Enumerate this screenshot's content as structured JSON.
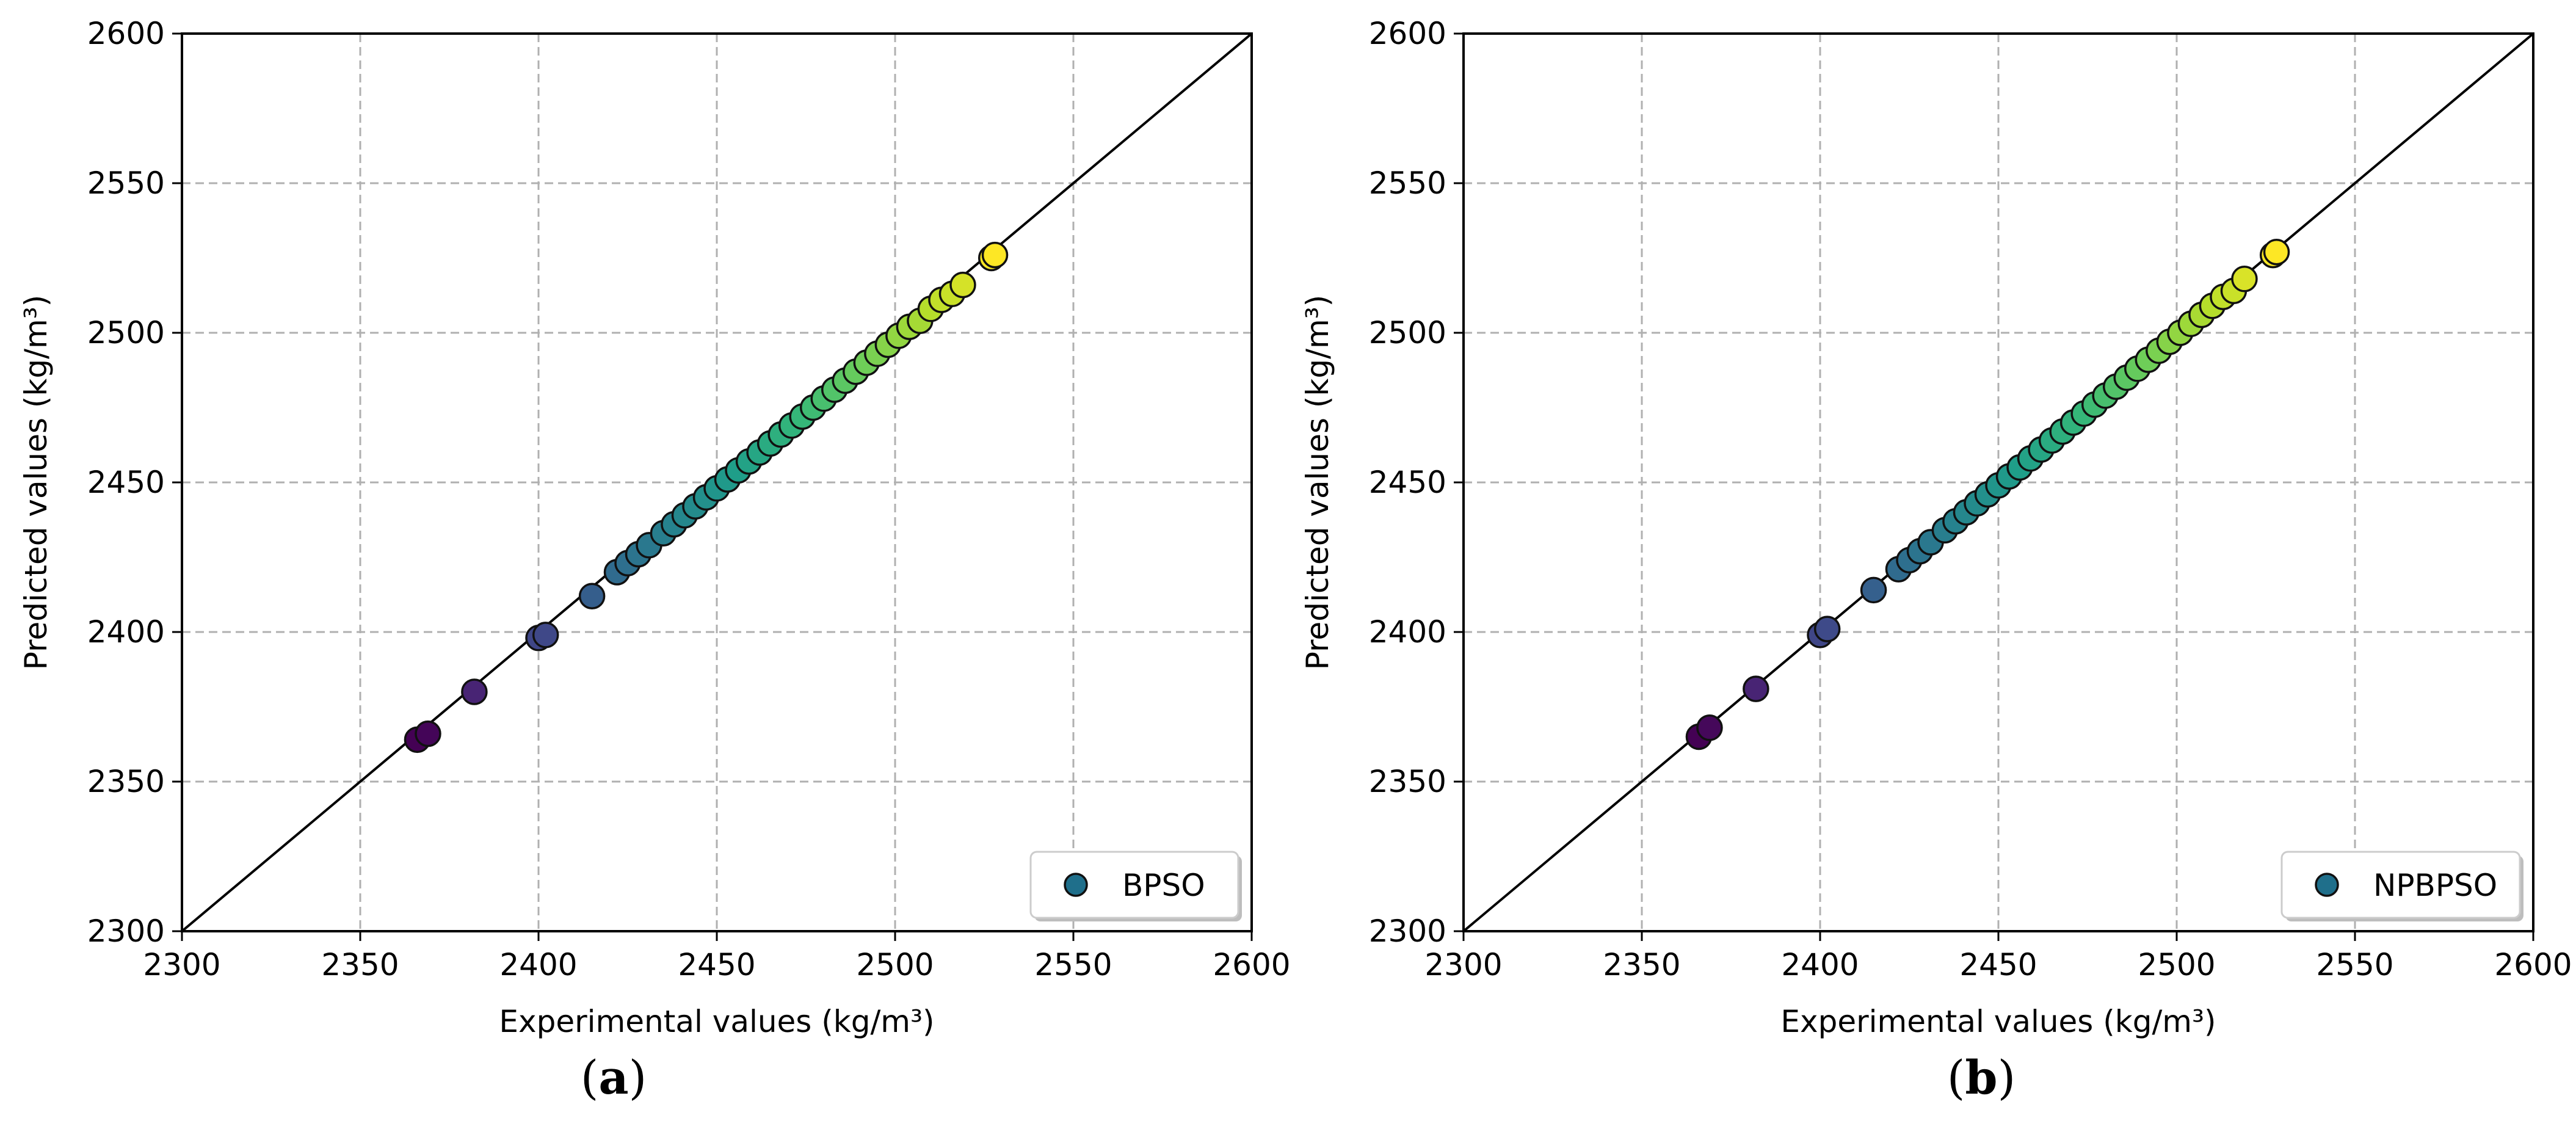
{
  "chart_data": [
    {
      "type": "scatter",
      "panel_label": "a",
      "xlabel": "Experimental values (kg/m³)",
      "ylabel": "Predicted values (kg/m³)",
      "xlim": [
        2300,
        2600
      ],
      "ylim": [
        2300,
        2600
      ],
      "xticks": [
        2300,
        2350,
        2400,
        2450,
        2500,
        2550,
        2600
      ],
      "yticks": [
        2300,
        2350,
        2400,
        2450,
        2500,
        2550,
        2600
      ],
      "grid": true,
      "reference_line": "y = x",
      "colormap": "viridis",
      "legend_position": "bottom-right",
      "series": [
        {
          "name": "BPSO",
          "legend_color": "#1f6f8b",
          "x": [
            2366,
            2369,
            2382,
            2400,
            2402,
            2415,
            2422,
            2425,
            2428,
            2431,
            2435,
            2438,
            2441,
            2444,
            2447,
            2450,
            2453,
            2456,
            2459,
            2462,
            2465,
            2468,
            2471,
            2474,
            2477,
            2480,
            2483,
            2486,
            2489,
            2492,
            2495,
            2498,
            2501,
            2504,
            2507,
            2510,
            2513,
            2516,
            2519,
            2527,
            2528
          ],
          "y": [
            2364,
            2366,
            2380,
            2398,
            2399,
            2412,
            2420,
            2423,
            2426,
            2429,
            2433,
            2436,
            2439,
            2442,
            2445,
            2448,
            2451,
            2454,
            2457,
            2460,
            2463,
            2466,
            2469,
            2472,
            2475,
            2478,
            2481,
            2484,
            2487,
            2490,
            2493,
            2496,
            2499,
            2502,
            2504,
            2508,
            2511,
            2513,
            2516,
            2525,
            2526
          ]
        }
      ]
    },
    {
      "type": "scatter",
      "panel_label": "b",
      "xlabel": "Experimental values (kg/m³)",
      "ylabel": "Predicted values (kg/m³)",
      "xlim": [
        2300,
        2600
      ],
      "ylim": [
        2300,
        2600
      ],
      "xticks": [
        2300,
        2350,
        2400,
        2450,
        2500,
        2550,
        2600
      ],
      "yticks": [
        2300,
        2350,
        2400,
        2450,
        2500,
        2550,
        2600
      ],
      "grid": true,
      "reference_line": "y = x",
      "colormap": "viridis",
      "legend_position": "bottom-right",
      "series": [
        {
          "name": "NPBPSO",
          "legend_color": "#1f6f8b",
          "x": [
            2366,
            2369,
            2382,
            2400,
            2402,
            2415,
            2422,
            2425,
            2428,
            2431,
            2435,
            2438,
            2441,
            2444,
            2447,
            2450,
            2453,
            2456,
            2459,
            2462,
            2465,
            2468,
            2471,
            2474,
            2477,
            2480,
            2483,
            2486,
            2489,
            2492,
            2495,
            2498,
            2501,
            2504,
            2507,
            2510,
            2513,
            2516,
            2519,
            2527,
            2528
          ],
          "y": [
            2365,
            2368,
            2381,
            2399,
            2401,
            2414,
            2421,
            2424,
            2427,
            2430,
            2434,
            2437,
            2440,
            2443,
            2446,
            2449,
            2452,
            2455,
            2458,
            2461,
            2464,
            2467,
            2470,
            2473,
            2476,
            2479,
            2482,
            2485,
            2488,
            2491,
            2494,
            2497,
            2500,
            2503,
            2506,
            2509,
            2512,
            2514,
            2518,
            2526,
            2527
          ]
        }
      ]
    }
  ],
  "captions": {
    "a": {
      "open": "(",
      "letter": "a",
      "close": ")"
    },
    "b": {
      "open": "(",
      "letter": "b",
      "close": ")"
    }
  }
}
